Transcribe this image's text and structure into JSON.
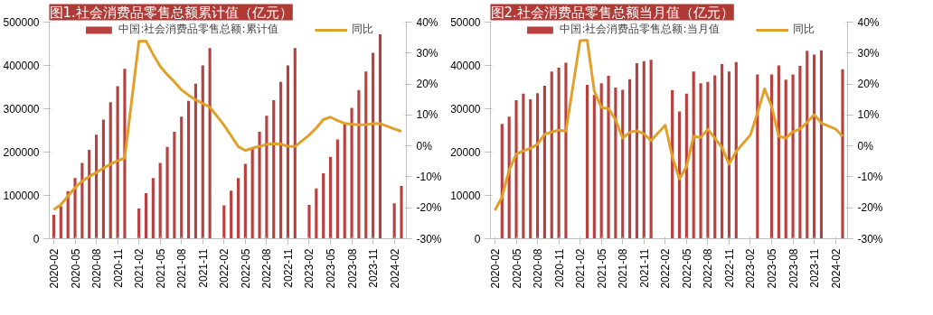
{
  "chart_data": [
    {
      "type": "bar",
      "title": "图1.社会消费品零售总额累计值（亿元）",
      "legend": "top",
      "grid": false,
      "x": [
        "2020-02",
        "2020-03",
        "2020-04",
        "2020-05",
        "2020-06",
        "2020-07",
        "2020-08",
        "2020-09",
        "2020-10",
        "2020-11",
        "2020-12",
        "2021-02",
        "2021-03",
        "2021-04",
        "2021-05",
        "2021-06",
        "2021-07",
        "2021-08",
        "2021-09",
        "2021-10",
        "2021-11",
        "2021-12",
        "2022-02",
        "2022-03",
        "2022-04",
        "2022-05",
        "2022-06",
        "2022-07",
        "2022-08",
        "2022-09",
        "2022-10",
        "2022-11",
        "2022-12",
        "2023-02",
        "2023-03",
        "2023-04",
        "2023-05",
        "2023-06",
        "2023-07",
        "2023-08",
        "2023-09",
        "2023-10",
        "2023-11",
        "2023-12",
        "2024-02",
        "2024-03"
      ],
      "xlim": [
        "2020-01-12",
        "2024-03-22"
      ],
      "xticks": [
        "2020-02",
        "2020-05",
        "2020-08",
        "2020-11",
        "2021-02",
        "2021-05",
        "2021-08",
        "2021-11",
        "2022-02",
        "2022-05",
        "2022-08",
        "2022-11",
        "2023-02",
        "2023-05",
        "2023-08",
        "2023-11",
        "2024-02"
      ],
      "ylim": [
        0,
        500000
      ],
      "yticks": [
        0,
        100000,
        200000,
        300000,
        400000,
        500000
      ],
      "y2lim": [
        -30,
        40
      ],
      "y2ticks": [
        {
          "value": -30,
          "label": "-30%"
        },
        {
          "value": -20,
          "label": "-20%"
        },
        {
          "value": -10,
          "label": "-10%"
        },
        {
          "value": 0,
          "label": "0%"
        },
        {
          "value": 10,
          "label": "10%"
        },
        {
          "value": 20,
          "label": "20%"
        },
        {
          "value": 30,
          "label": "30%"
        },
        {
          "value": 40,
          "label": "40%"
        }
      ],
      "series": [
        {
          "name": "中国:社会消费品零售总额:累计值",
          "color": "#b8403f",
          "values": [
            55000,
            75000,
            110000,
            140000,
            175000,
            205000,
            240000,
            275000,
            315000,
            352000,
            392000,
            70000,
            105000,
            140000,
            175000,
            212000,
            247000,
            282000,
            318000,
            358000,
            400000,
            440000,
            77000,
            111000,
            140000,
            173000,
            210000,
            247000,
            284000,
            320000,
            362000,
            400000,
            440000,
            78000,
            116000,
            151000,
            189000,
            229000,
            264000,
            302000,
            343000,
            386000,
            429000,
            472000,
            82000,
            122000
          ]
        },
        {
          "name": "同比",
          "type": "line",
          "axis": "y2",
          "color": "#e0a02a",
          "values": [
            -20.6,
            -19.0,
            -16.2,
            -13.5,
            -11.4,
            -9.9,
            -8.6,
            -7.2,
            -5.9,
            -4.8,
            -3.9,
            33.8,
            33.9,
            29.6,
            25.7,
            23.0,
            20.7,
            18.1,
            16.4,
            14.9,
            13.7,
            12.5,
            6.7,
            3.3,
            -0.2,
            -1.5,
            -0.7,
            -0.2,
            0.5,
            0.7,
            0.6,
            -0.1,
            -0.2,
            3.5,
            5.8,
            8.5,
            9.3,
            8.2,
            7.3,
            7.0,
            6.8,
            6.9,
            7.2,
            7.2,
            5.5,
            4.7
          ]
        }
      ]
    },
    {
      "type": "bar",
      "title": "图2.社会消费品零售总额当月值（亿元）",
      "legend": "top",
      "grid": false,
      "x": [
        "2020-02",
        "2020-03",
        "2020-04",
        "2020-05",
        "2020-06",
        "2020-07",
        "2020-08",
        "2020-09",
        "2020-10",
        "2020-11",
        "2020-12",
        "2021-02",
        "2021-03",
        "2021-04",
        "2021-05",
        "2021-06",
        "2021-07",
        "2021-08",
        "2021-09",
        "2021-10",
        "2021-11",
        "2021-12",
        "2022-02",
        "2022-03",
        "2022-04",
        "2022-05",
        "2022-06",
        "2022-07",
        "2022-08",
        "2022-09",
        "2022-10",
        "2022-11",
        "2022-12",
        "2023-02",
        "2023-03",
        "2023-04",
        "2023-05",
        "2023-06",
        "2023-07",
        "2023-08",
        "2023-09",
        "2023-10",
        "2023-11",
        "2023-12",
        "2024-02",
        "2024-03"
      ],
      "xlim": [
        "2020-01-12",
        "2024-03-22"
      ],
      "xticks": [
        "2020-02",
        "2020-05",
        "2020-08",
        "2020-11",
        "2021-02",
        "2021-05",
        "2021-08",
        "2021-11",
        "2022-02",
        "2022-05",
        "2022-08",
        "2022-11",
        "2023-02",
        "2023-05",
        "2023-08",
        "2023-11",
        "2024-02"
      ],
      "ylim": [
        0,
        50000
      ],
      "yticks": [
        0,
        10000,
        20000,
        30000,
        40000,
        50000
      ],
      "y2lim": [
        -30,
        40
      ],
      "y2ticks": [
        {
          "value": -30,
          "label": "-30%"
        },
        {
          "value": -20,
          "label": "-20%"
        },
        {
          "value": -10,
          "label": "-10%"
        },
        {
          "value": 0,
          "label": "0%"
        },
        {
          "value": 10,
          "label": "10%"
        },
        {
          "value": 20,
          "label": "20%"
        },
        {
          "value": 30,
          "label": "30%"
        },
        {
          "value": 40,
          "label": "40%"
        }
      ],
      "series": [
        {
          "name": "中国:社会消费品零售总额:当月值",
          "color": "#b8403f",
          "values": [
            null,
            26500,
            28200,
            32000,
            33500,
            32200,
            33600,
            35300,
            38600,
            39500,
            40600,
            null,
            35500,
            33200,
            35900,
            37600,
            34900,
            34400,
            36800,
            40500,
            41000,
            41300,
            null,
            34300,
            29400,
            33500,
            38600,
            35900,
            36200,
            37700,
            40300,
            38600,
            40800,
            null,
            37900,
            null,
            37900,
            40000,
            36700,
            37900,
            39900,
            43400,
            42500,
            43500,
            null,
            39100
          ]
        },
        {
          "name": "同比",
          "type": "line",
          "axis": "y2",
          "color": "#e0a02a",
          "values": [
            -20.8,
            -16.5,
            -7.8,
            -2.7,
            -1.6,
            -0.8,
            0.5,
            3.7,
            4.5,
            5.1,
            4.8,
            34.0,
            34.2,
            17.7,
            12.4,
            12.1,
            8.5,
            2.5,
            4.4,
            4.9,
            3.9,
            1.7,
            6.7,
            -3.5,
            -10.7,
            -6.7,
            3.1,
            2.7,
            5.4,
            2.5,
            -0.5,
            -5.9,
            -1.8,
            3.5,
            10.6,
            18.4,
            12.7,
            3.1,
            2.5,
            4.6,
            5.5,
            7.6,
            10.1,
            7.4,
            5.5,
            3.1
          ]
        }
      ]
    }
  ]
}
